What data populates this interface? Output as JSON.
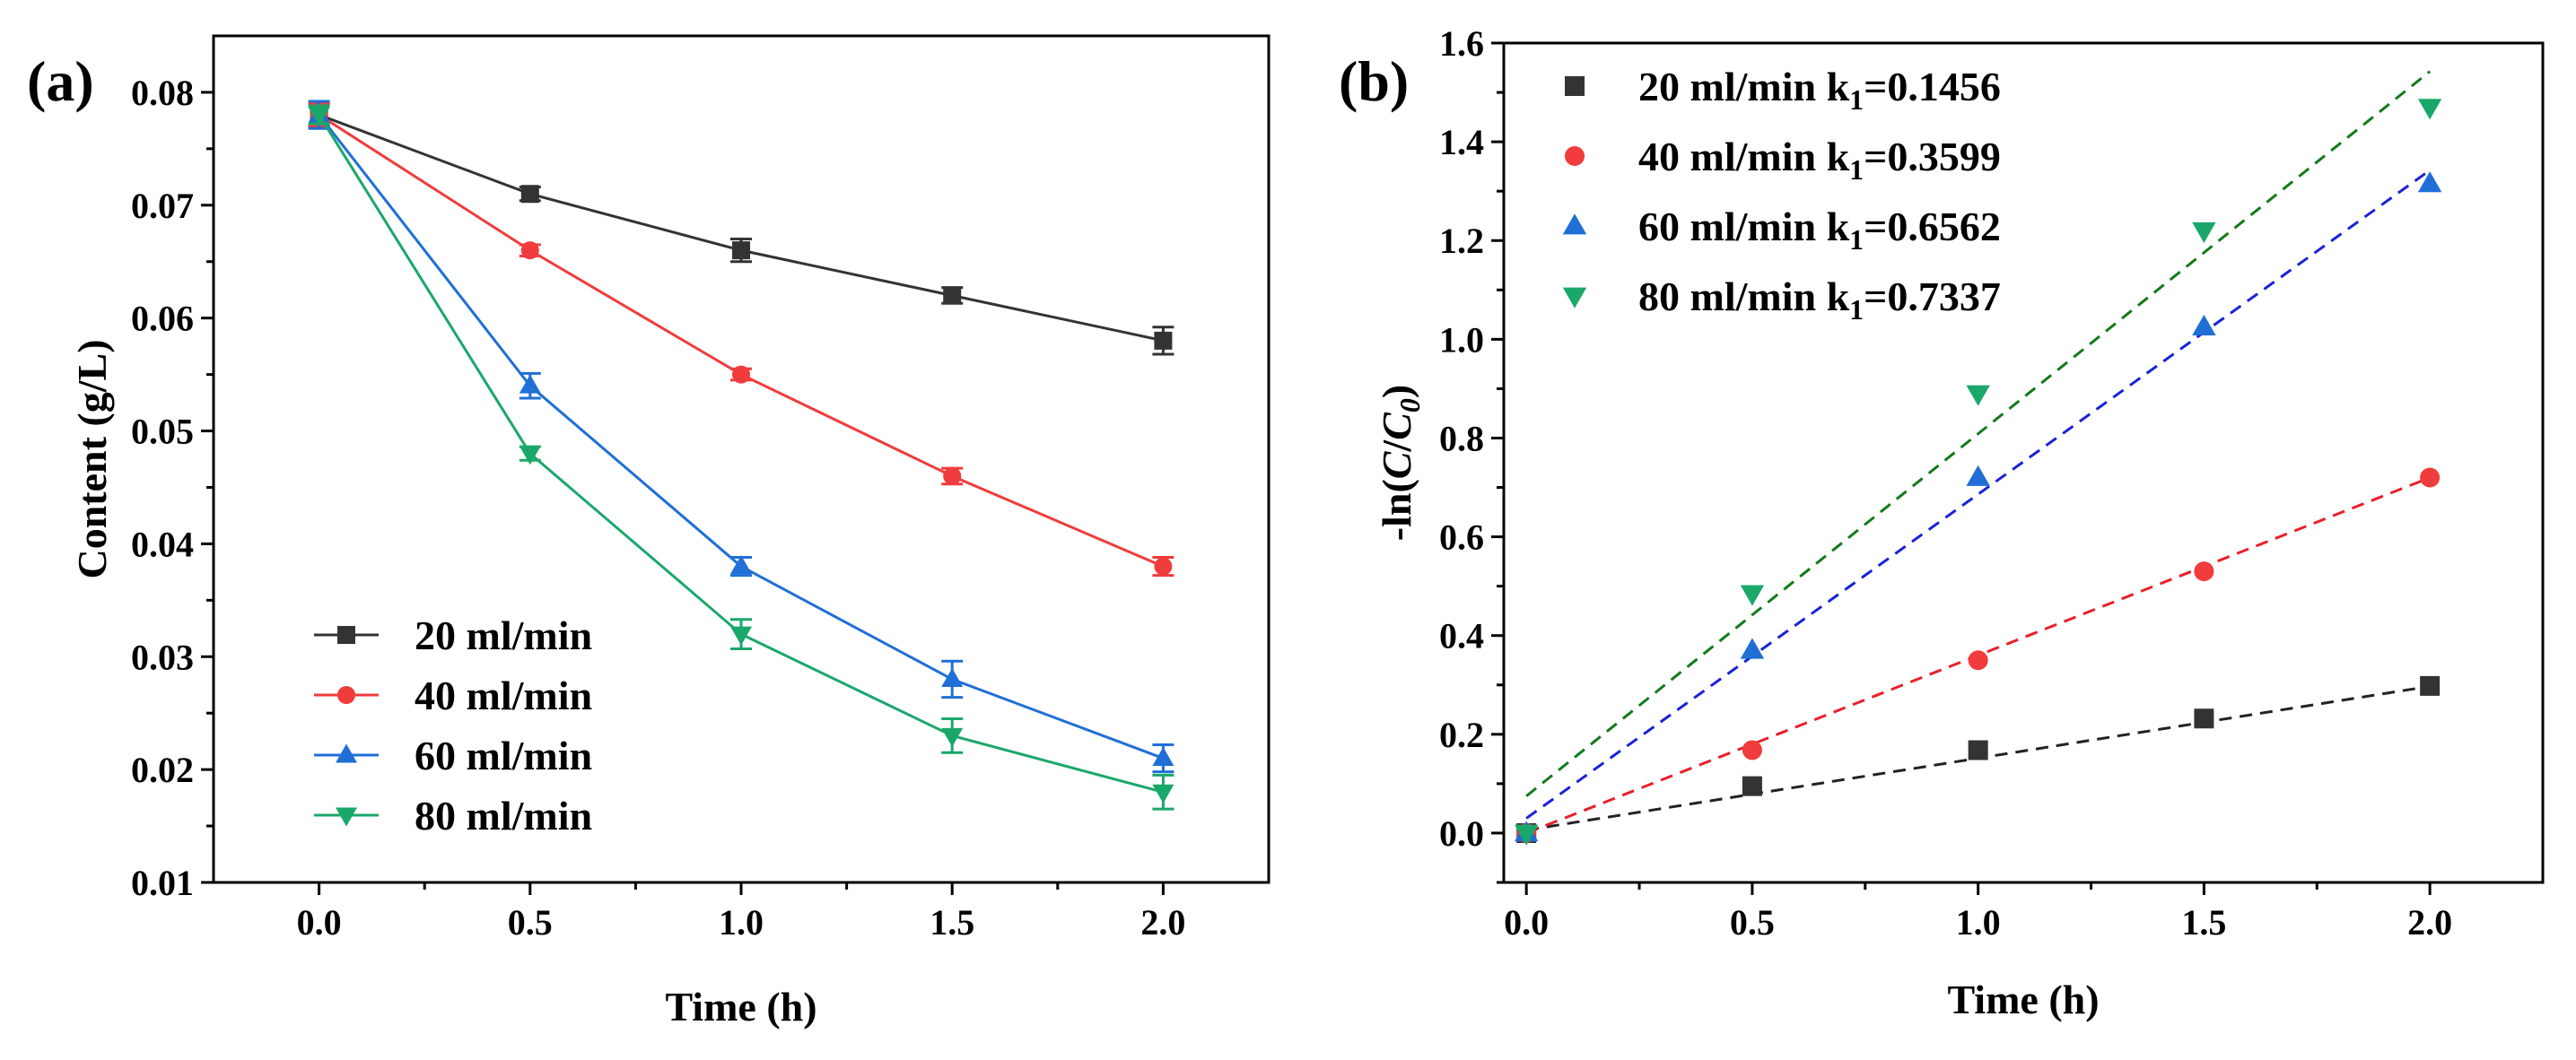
{
  "chart_data": [
    {
      "panel_label": "(a)",
      "type": "line",
      "xlabel": "Time (h)",
      "ylabel": "Content (g/L)",
      "xlim": [
        -0.25,
        2.25
      ],
      "ylim": [
        0.01,
        0.085
      ],
      "xticks": [
        0.0,
        0.5,
        1.0,
        1.5,
        2.0
      ],
      "xtick_labels": [
        "0.0",
        "0.5",
        "1.0",
        "1.5",
        "2.0"
      ],
      "yticks": [
        0.01,
        0.02,
        0.03,
        0.04,
        0.05,
        0.06,
        0.07,
        0.08
      ],
      "ytick_labels": [
        "0.01",
        "0.02",
        "0.03",
        "0.04",
        "0.05",
        "0.06",
        "0.07",
        "0.08"
      ],
      "legend_position": "bottom-left",
      "x": [
        0.0,
        0.5,
        1.0,
        1.5,
        2.0
      ],
      "series": [
        {
          "name": "20 ml/min",
          "color": "#333333",
          "marker": "square",
          "values": [
            0.078,
            0.071,
            0.066,
            0.062,
            0.058
          ],
          "errors": [
            0.001,
            0.0006,
            0.001,
            0.0007,
            0.0012
          ]
        },
        {
          "name": "40 ml/min",
          "color": "#f03c3c",
          "marker": "circle",
          "values": [
            0.078,
            0.066,
            0.055,
            0.046,
            0.038
          ],
          "errors": [
            0.001,
            0.0005,
            0.0005,
            0.0007,
            0.0008
          ]
        },
        {
          "name": "60 ml/min",
          "color": "#1f6fd6",
          "marker": "triangle-up",
          "values": [
            0.078,
            0.054,
            0.038,
            0.028,
            0.021
          ],
          "errors": [
            0.0012,
            0.0011,
            0.0008,
            0.0016,
            0.0012
          ]
        },
        {
          "name": "80 ml/min",
          "color": "#1aa86a",
          "marker": "triangle-down",
          "values": [
            0.078,
            0.048,
            0.032,
            0.023,
            0.018
          ],
          "errors": [
            0.0008,
            0.0006,
            0.0013,
            0.0015,
            0.0015
          ]
        }
      ]
    },
    {
      "panel_label": "(b)",
      "type": "scatter",
      "xlabel": "Time (h)",
      "ylabel": "-ln(C/C0)",
      "ylabel_parts": {
        "prefix": "-ln(",
        "c": "C",
        "slash": "/",
        "c0": "C",
        "sub": "0",
        "suffix": ")"
      },
      "xlim": [
        -0.05,
        2.25
      ],
      "ylim": [
        -0.1,
        1.6
      ],
      "xticks": [
        0.0,
        0.5,
        1.0,
        1.5,
        2.0
      ],
      "xtick_labels": [
        "0.0",
        "0.5",
        "1.0",
        "1.5",
        "2.0"
      ],
      "yticks": [
        0.0,
        0.2,
        0.4,
        0.6,
        0.8,
        1.0,
        1.2,
        1.4,
        1.6
      ],
      "ytick_labels": [
        "0.0",
        "0.2",
        "0.4",
        "0.6",
        "0.8",
        "1.0",
        "1.2",
        "1.4",
        "1.6"
      ],
      "legend_position": "top-left",
      "x": [
        0.0,
        0.5,
        1.0,
        1.5,
        2.0
      ],
      "series": [
        {
          "name": "20 ml/min",
          "k_label": "k",
          "k_sub": "1",
          "k_value": "=0.1456",
          "color": "#333333",
          "line_color": "#222222",
          "marker": "square",
          "values": [
            0.0,
            0.095,
            0.168,
            0.232,
            0.298
          ],
          "fit": {
            "slope": 0.1456,
            "intercept": 0.006
          }
        },
        {
          "name": "40 ml/min",
          "k_label": "k",
          "k_sub": "1",
          "k_value": "=0.3599",
          "color": "#f03c3c",
          "line_color": "#e8202a",
          "marker": "circle",
          "values": [
            0.0,
            0.168,
            0.35,
            0.53,
            0.72
          ],
          "fit": {
            "slope": 0.3599,
            "intercept": 0.0
          }
        },
        {
          "name": "60 ml/min",
          "k_label": "k",
          "k_sub": "1",
          "k_value": "=0.6562",
          "color": "#1f6fd6",
          "line_color": "#1a22d8",
          "marker": "triangle-up",
          "values": [
            0.0,
            0.37,
            0.72,
            1.025,
            1.315
          ],
          "fit": {
            "slope": 0.6562,
            "intercept": 0.03
          }
        },
        {
          "name": "80 ml/min",
          "k_label": "k",
          "k_sub": "1",
          "k_value": "=0.7337",
          "color": "#1aa86a",
          "line_color": "#137a1a",
          "marker": "triangle-down",
          "values": [
            0.0,
            0.485,
            0.89,
            1.22,
            1.47
          ],
          "fit": {
            "slope": 0.7337,
            "intercept": 0.075
          }
        }
      ]
    }
  ]
}
